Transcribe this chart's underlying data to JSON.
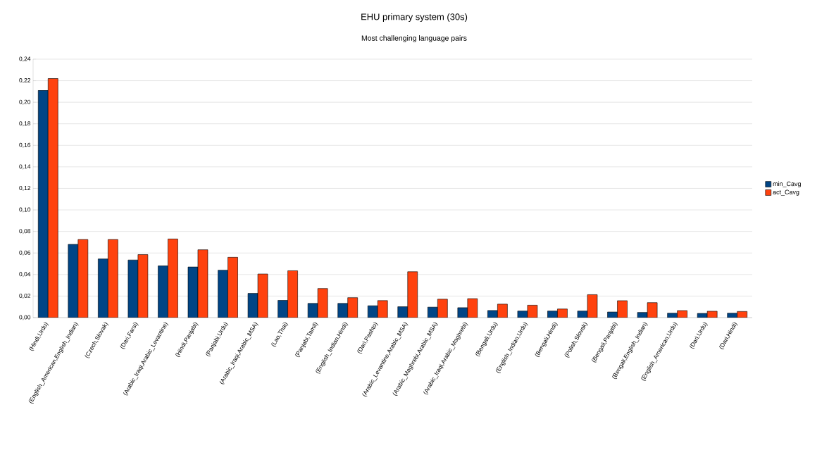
{
  "chart_data": {
    "type": "bar",
    "title": "EHU primary system (30s)",
    "subtitle": "Most challenging language pairs",
    "categories": [
      "(Hindi,Urdu)",
      "(English_American,English_Indian)",
      "(Czech,Slovak)",
      "(Dari,Farsi)",
      "(Arabic_Iraqi,Arabic_Levantine)",
      "(Hindi,Panjabi)",
      "(Panjabi,Urdu)",
      "(Arabic_Iraqi,Arabic_MSA)",
      "(Lao,Thai)",
      "(Panjabi,Tamil)",
      "(English_Indian,Hindi)",
      "(Dari,Pashto)",
      "(Arabic_Levantine,Arabic_MSA)",
      "(Arabic_Maghrebi,Arabic_MSA)",
      "(Arabic_Iraqi,Arabic_Maghrebi)",
      "(Bengali,Urdu)",
      "(English_Indian,Urdu)",
      "(Bengali,Hindi)",
      "(Polish,Slovak)",
      "(Bengali,Panjabi)",
      "(Bengali,English_Indian)",
      "(English_American,Urdu)",
      "(Dari,Urdu)",
      "(Dari,Hindi)"
    ],
    "series": [
      {
        "name": "min_Cavg",
        "color": "#004586",
        "values": [
          0.211,
          0.068,
          0.0545,
          0.0535,
          0.048,
          0.047,
          0.044,
          0.0225,
          0.016,
          0.0132,
          0.0132,
          0.011,
          0.0101,
          0.0097,
          0.0092,
          0.0066,
          0.0061,
          0.0061,
          0.0061,
          0.0052,
          0.0048,
          0.0041,
          0.0039,
          0.0041
        ]
      },
      {
        "name": "act_Cavg",
        "color": "#ff420e",
        "values": [
          0.222,
          0.0725,
          0.0725,
          0.0585,
          0.073,
          0.063,
          0.056,
          0.0405,
          0.0435,
          0.027,
          0.0185,
          0.0158,
          0.0426,
          0.0171,
          0.0176,
          0.0125,
          0.0115,
          0.008,
          0.0213,
          0.0157,
          0.0139,
          0.0065,
          0.0059,
          0.0057
        ]
      }
    ],
    "ylim": [
      0,
      0.24
    ],
    "yticks": [
      {
        "value": 0,
        "label": "0,00"
      },
      {
        "value": 0.02,
        "label": "0,02"
      },
      {
        "value": 0.04,
        "label": "0,04"
      },
      {
        "value": 0.06,
        "label": "0,06"
      },
      {
        "value": 0.08,
        "label": "0,08"
      },
      {
        "value": 0.1,
        "label": "0,10"
      },
      {
        "value": 0.12,
        "label": "0,12"
      },
      {
        "value": 0.14,
        "label": "0,14"
      },
      {
        "value": 0.16,
        "label": "0,16"
      },
      {
        "value": 0.18,
        "label": "0,18"
      },
      {
        "value": 0.2,
        "label": "0,20"
      },
      {
        "value": 0.22,
        "label": "0,22"
      },
      {
        "value": 0.24,
        "label": "0,24"
      }
    ],
    "grid": "y",
    "legend": "right"
  }
}
